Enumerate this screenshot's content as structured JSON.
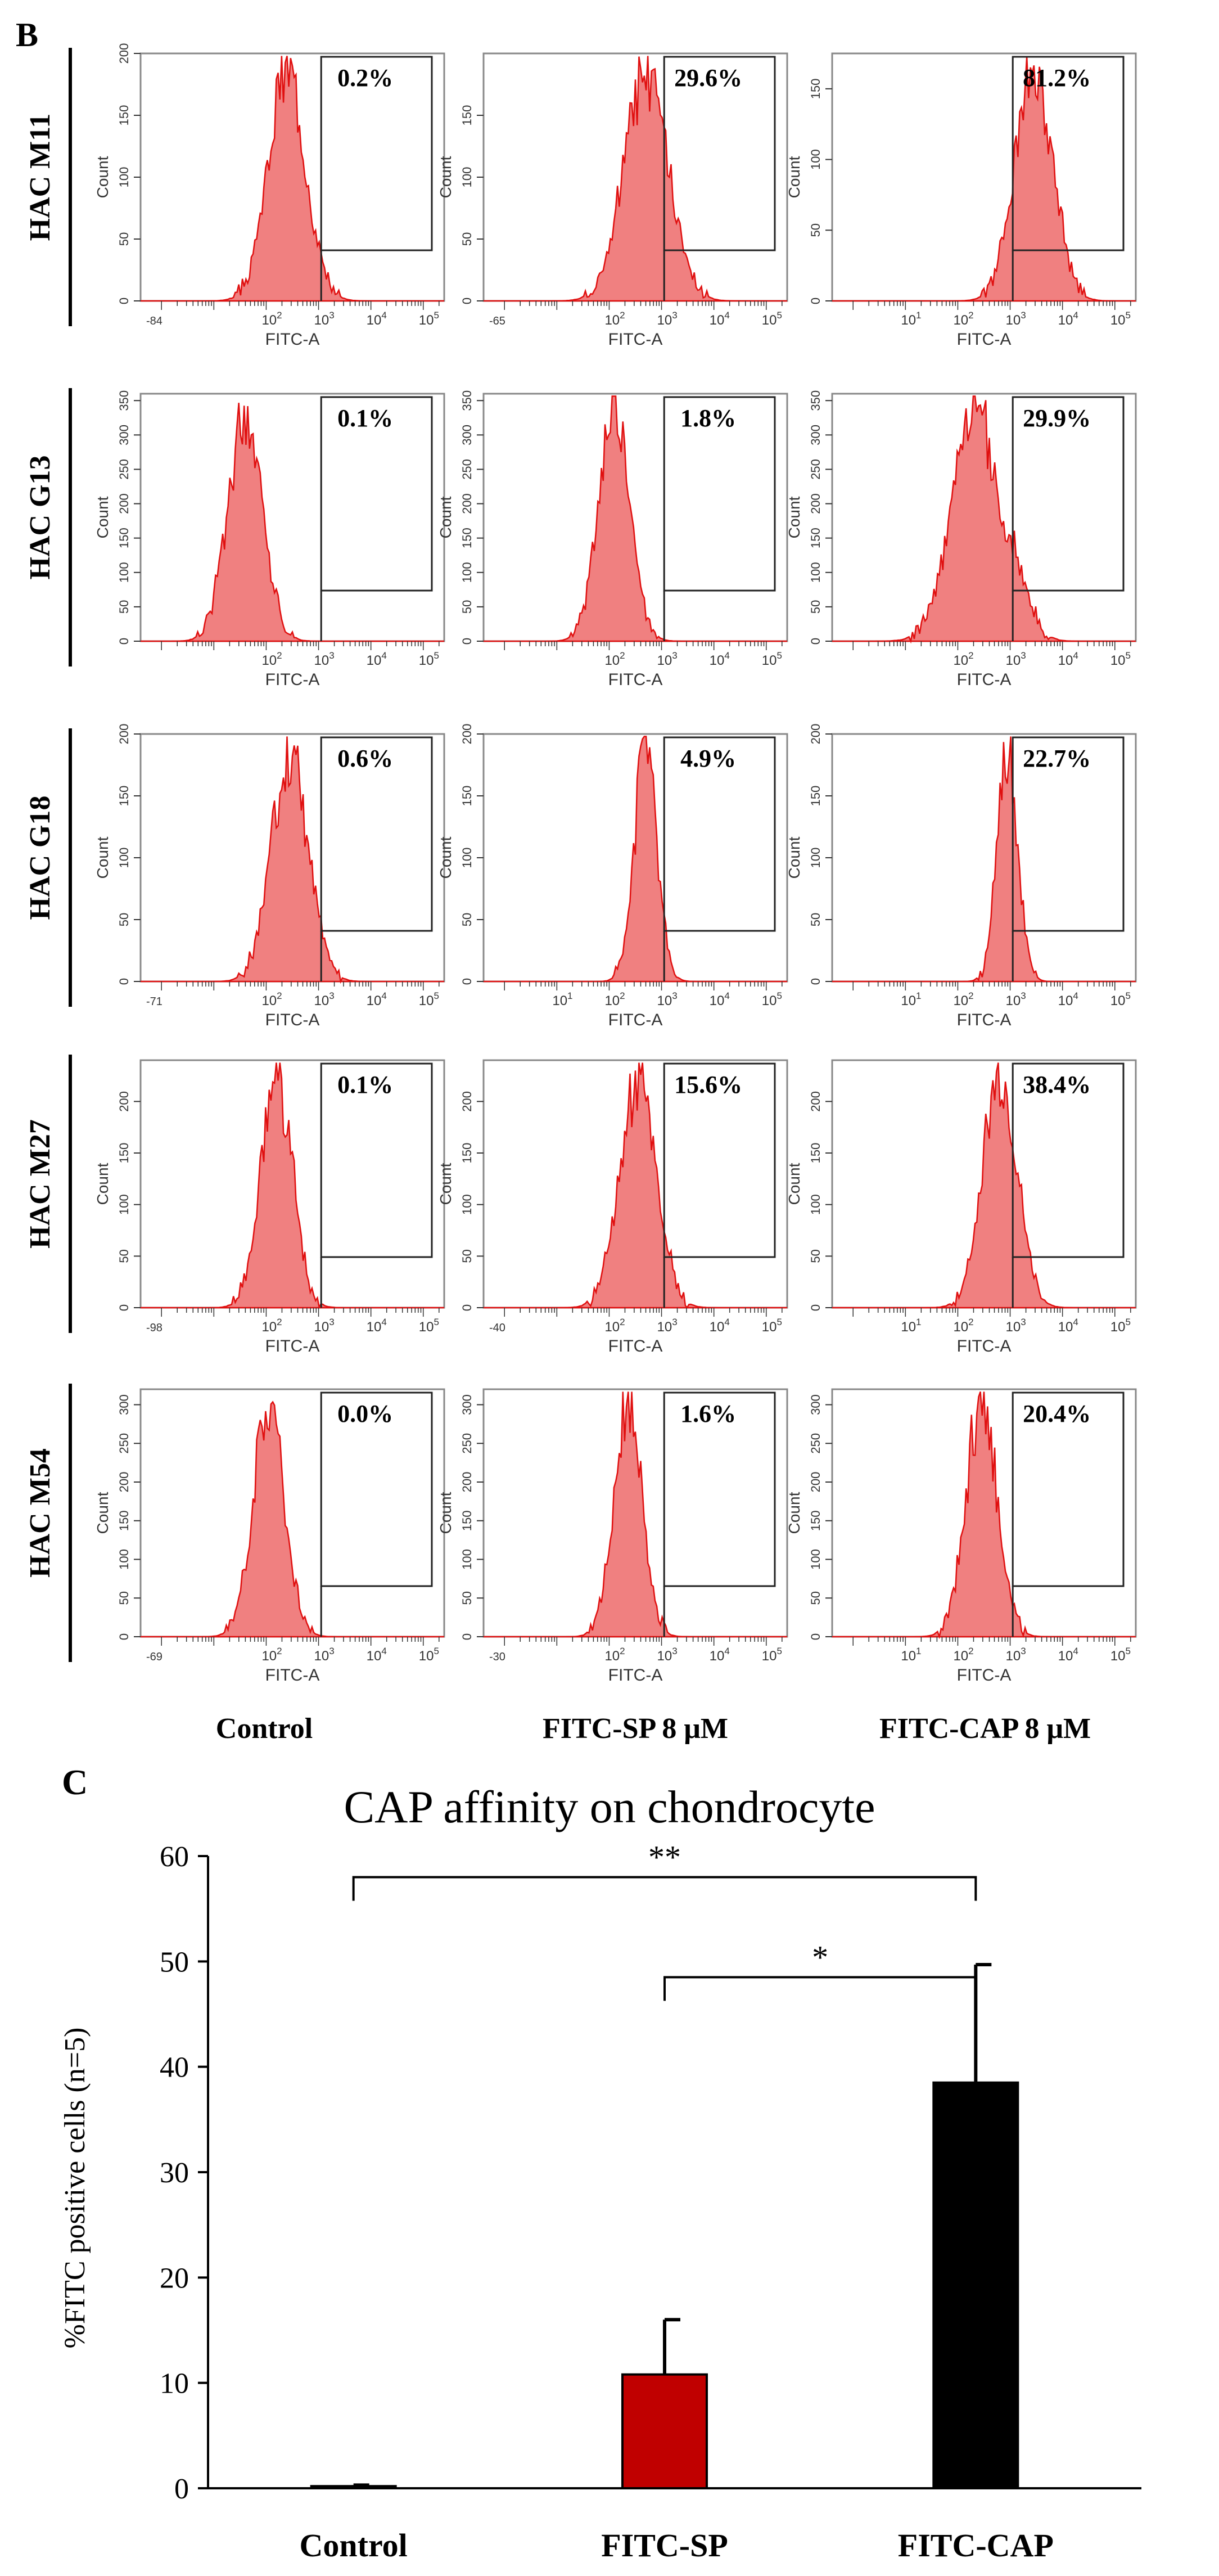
{
  "figure": {
    "panel_b_label": "B",
    "panel_c_label": "C",
    "row_labels": [
      "HAC M11",
      "HAC G13",
      "HAC G18",
      "HAC M27",
      "HAC M54"
    ],
    "column_labels": [
      "Control",
      "FITC-SP 8 μM",
      "FITC-CAP 8 μM"
    ],
    "hist_axis": {
      "xlabel": "FITC-A",
      "ylabel": "Count"
    }
  },
  "histograms": [
    [
      {
        "pct": "0.2%",
        "ymax": 200,
        "yticks": [
          0,
          50,
          100,
          150,
          200
        ],
        "xmin": "-84",
        "xlog": [
          2,
          3,
          4,
          5
        ],
        "peak": 2.4,
        "width": 0.36
      },
      {
        "pct": "29.6%",
        "ymax": 200,
        "yticks": [
          0,
          50,
          100,
          150
        ],
        "xmin": "-65",
        "xlog": [
          2,
          3,
          4,
          5
        ],
        "peak": 2.7,
        "width": 0.42
      },
      {
        "pct": "81.2%",
        "ymax": 175,
        "yticks": [
          0,
          50,
          100,
          150
        ],
        "xmin": "",
        "xlog": [
          1,
          2,
          3,
          4,
          5
        ],
        "peak": 3.45,
        "width": 0.36
      }
    ],
    [
      {
        "pct": "0.1%",
        "ymax": 360,
        "yticks": [
          0,
          50,
          100,
          150,
          200,
          250,
          300,
          350
        ],
        "xmin": "",
        "xlog": [
          2,
          3,
          4,
          5
        ],
        "peak": 1.6,
        "width": 0.33
      },
      {
        "pct": "1.8%",
        "ymax": 360,
        "yticks": [
          0,
          50,
          100,
          150,
          200,
          250,
          300,
          350
        ],
        "xmin": "",
        "xlog": [
          2,
          3,
          4,
          5
        ],
        "peak": 2.1,
        "width": 0.3
      },
      {
        "pct": "29.9%",
        "ymax": 360,
        "yticks": [
          0,
          50,
          100,
          150,
          200,
          250,
          300,
          350
        ],
        "xmin": "",
        "xlog": [
          2,
          3,
          4,
          5
        ],
        "peak": 2.35,
        "width": 0.45
      }
    ],
    [
      {
        "pct": "0.6%",
        "ymax": 200,
        "yticks": [
          0,
          50,
          100,
          150,
          200
        ],
        "xmin": "-71",
        "xlog": [
          2,
          3,
          4,
          5
        ],
        "peak": 2.45,
        "width": 0.35
      },
      {
        "pct": "4.9%",
        "ymax": 200,
        "yticks": [
          0,
          50,
          100,
          150,
          200
        ],
        "xmin": "",
        "xlog": [
          1,
          2,
          3,
          4,
          5
        ],
        "peak": 2.7,
        "width": 0.22
      },
      {
        "pct": "22.7%",
        "ymax": 200,
        "yticks": [
          0,
          50,
          100,
          150,
          200
        ],
        "xmin": "",
        "xlog": [
          1,
          2,
          3,
          4,
          5
        ],
        "peak": 2.95,
        "width": 0.2
      }
    ],
    [
      {
        "pct": "0.1%",
        "ymax": 240,
        "yticks": [
          0,
          50,
          100,
          150,
          200
        ],
        "xmin": "-98",
        "xlog": [
          2,
          3,
          4,
          5
        ],
        "peak": 2.2,
        "width": 0.3
      },
      {
        "pct": "15.6%",
        "ymax": 240,
        "yticks": [
          0,
          50,
          100,
          150,
          200
        ],
        "xmin": "-40",
        "xlog": [
          2,
          3,
          4,
          5
        ],
        "peak": 2.55,
        "width": 0.35
      },
      {
        "pct": "38.4%",
        "ymax": 240,
        "yticks": [
          0,
          50,
          100,
          150,
          200
        ],
        "xmin": "",
        "xlog": [
          1,
          2,
          3,
          4,
          5
        ],
        "peak": 2.8,
        "width": 0.33
      }
    ],
    [
      {
        "pct": "0.0%",
        "ymax": 320,
        "yticks": [
          0,
          50,
          100,
          150,
          200,
          250,
          300
        ],
        "xmin": "-69",
        "xlog": [
          2,
          3,
          4,
          5
        ],
        "peak": 2.05,
        "width": 0.3
      },
      {
        "pct": "1.6%",
        "ymax": 320,
        "yticks": [
          0,
          50,
          100,
          150,
          200,
          250,
          300
        ],
        "xmin": "-30",
        "xlog": [
          2,
          3,
          4,
          5
        ],
        "peak": 2.35,
        "width": 0.27
      },
      {
        "pct": "20.4%",
        "ymax": 320,
        "yticks": [
          0,
          50,
          100,
          150,
          200,
          250,
          300
        ],
        "xmin": "",
        "xlog": [
          1,
          2,
          3,
          4,
          5
        ],
        "peak": 2.45,
        "width": 0.3
      }
    ]
  ],
  "chart_data": {
    "type": "bar",
    "title": "CAP affinity on chondrocyte",
    "ylabel": "%FITC positive cells (n=5)",
    "xlabel": "",
    "ylim": [
      0,
      60
    ],
    "yticks": [
      0,
      10,
      20,
      30,
      40,
      50,
      60
    ],
    "categories": [
      "Control",
      "FITC-SP",
      "FITC-CAP"
    ],
    "values": [
      0.2,
      10.8,
      38.5
    ],
    "errors": [
      0.1,
      5.2,
      11.2
    ],
    "colors": [
      "#000000",
      "#c00000",
      "#000000"
    ],
    "significance": [
      {
        "from": 0,
        "to": 2,
        "label": "**",
        "y": 58
      },
      {
        "from": 1,
        "to": 2,
        "label": "*",
        "y": 48.5
      }
    ]
  }
}
